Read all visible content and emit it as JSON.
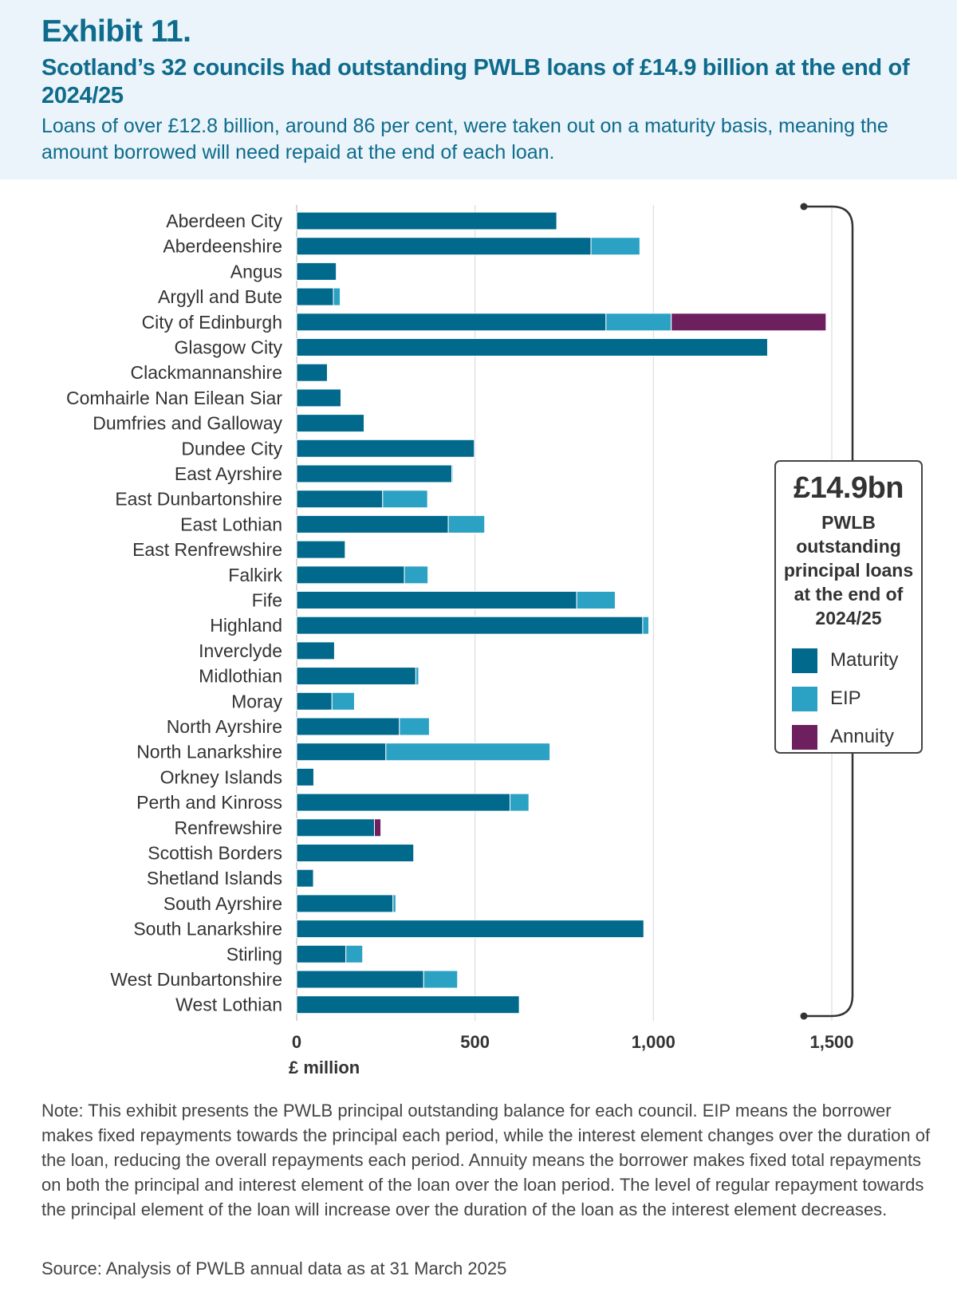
{
  "header": {
    "exhibit": "Exhibit 11.",
    "title": "Scotland’s 32 councils had outstanding PWLB loans of £14.9 billion at the end of 2024/25",
    "subtitle": "Loans of over £12.8 billion, around 86 per cent, were taken out on a maturity basis, meaning the amount borrowed will need repaid at the end of each loan."
  },
  "legend": {
    "total": "£14.9bn",
    "description": "PWLB outstanding principal loans at the end of 2024/25",
    "items": [
      {
        "label": "Maturity",
        "color": "#00698c"
      },
      {
        "label": "EIP",
        "color": "#2ba1c4"
      },
      {
        "label": "Annuity",
        "color": "#6e1f5e"
      }
    ]
  },
  "footer": {
    "note": "Note: This exhibit presents the PWLB principal outstanding balance for each council. EIP means the borrower makes fixed repayments towards the principal each period, while the interest element changes over the duration of the loan, reducing the overall repayments each period. Annuity means the borrower makes fixed total repayments on both the principal and interest element of the loan over the loan period. The level of regular repayment towards the principal element of the loan will increase over the duration of the loan as the interest element decreases.",
    "source": "Source: Analysis of PWLB annual data as at 31 March 2025"
  },
  "chart_data": {
    "type": "bar",
    "orientation": "horizontal",
    "stacked": true,
    "title": "Scotland’s 32 councils had outstanding PWLB loans of £14.9 billion at the end of 2024/25",
    "xlabel": "£ million",
    "ylabel": "",
    "xlim": [
      0,
      1500
    ],
    "xticks": [
      0,
      500,
      1000,
      1500
    ],
    "xtick_labels": [
      "0",
      "500",
      "1,000",
      "1,500"
    ],
    "grid": true,
    "legend_position": "right",
    "categories": [
      "Aberdeen City",
      "Aberdeenshire",
      "Angus",
      "Argyll and Bute",
      "City of Edinburgh",
      "Glasgow City",
      "Clackmannanshire",
      "Comhairle Nan Eilean Siar",
      "Dumfries and Galloway",
      "Dundee City",
      "East Ayrshire",
      "East Dunbartonshire",
      "East Lothian",
      "East Renfrewshire",
      "Falkirk",
      "Fife",
      "Highland",
      "Inverclyde",
      "Midlothian",
      "Moray",
      "North Ayrshire",
      "North Lanarkshire",
      "Orkney Islands",
      "Perth and Kinross",
      "Renfrewshire",
      "Scottish Borders",
      "Shetland Islands",
      "South Ayrshire",
      "South Lanarkshire",
      "Stirling",
      "West Dunbartonshire",
      "West Lothian"
    ],
    "series": [
      {
        "name": "Maturity",
        "color": "#00698c",
        "values": [
          729,
          825,
          111,
          103,
          867,
          1320,
          86,
          124,
          189,
          498,
          435,
          241,
          425,
          136,
          302,
          785,
          970,
          106,
          334,
          99,
          288,
          250,
          48,
          598,
          218,
          328,
          47,
          270,
          973,
          138,
          356,
          624
        ]
      },
      {
        "name": "EIP",
        "color": "#2ba1c4",
        "values": [
          0,
          137,
          0,
          19,
          183,
          0,
          0,
          0,
          0,
          0,
          3,
          126,
          102,
          0,
          66,
          108,
          17,
          0,
          8,
          63,
          84,
          460,
          0,
          53,
          0,
          0,
          0,
          8,
          0,
          47,
          95,
          0
        ]
      },
      {
        "name": "Annuity",
        "color": "#6e1f5e",
        "values": [
          0,
          0,
          0,
          0,
          434,
          0,
          0,
          0,
          0,
          0,
          0,
          0,
          0,
          0,
          0,
          0,
          0,
          0,
          0,
          0,
          0,
          0,
          0,
          0,
          18,
          0,
          0,
          0,
          0,
          0,
          0,
          0
        ]
      }
    ],
    "annotation": "£14.9bn PWLB outstanding principal loans at the end of 2024/25"
  }
}
